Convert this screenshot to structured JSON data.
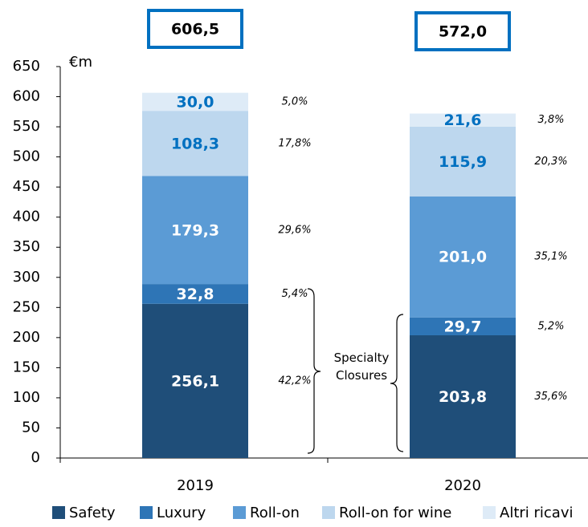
{
  "chart_data": {
    "type": "stacked_bar",
    "unit_label": "€m",
    "categories": [
      "2019",
      "2020"
    ],
    "series": [
      {
        "name": "Safety",
        "color": "#1f4e79",
        "label_color": "#ffffff",
        "values": [
          256.1,
          203.8
        ],
        "value_labels": [
          "256,1",
          "203,8"
        ],
        "shares": [
          42.2,
          35.6
        ],
        "share_labels": [
          "42,2%",
          "35,6%"
        ]
      },
      {
        "name": "Luxury",
        "color": "#2e75b6",
        "label_color": "#ffffff",
        "values": [
          32.8,
          29.7
        ],
        "value_labels": [
          "32,8",
          "29,7"
        ],
        "shares": [
          5.4,
          5.2
        ],
        "share_labels": [
          "5,4%",
          "5,2%"
        ]
      },
      {
        "name": "Roll-on",
        "color": "#5b9bd5",
        "label_color": "#ffffff",
        "values": [
          179.3,
          201.0
        ],
        "value_labels": [
          "179,3",
          "201,0"
        ],
        "shares": [
          29.6,
          35.1
        ],
        "share_labels": [
          "29,6%",
          "35,1%"
        ]
      },
      {
        "name": "Roll-on for wine",
        "color": "#bdd7ee",
        "label_color": "#0070c0",
        "values": [
          108.3,
          115.9
        ],
        "value_labels": [
          "108,3",
          "115,9"
        ],
        "shares": [
          17.8,
          20.3
        ],
        "share_labels": [
          "17,8%",
          "20,3%"
        ]
      },
      {
        "name": "Altri ricavi",
        "color": "#deebf7",
        "label_color": "#0070c0",
        "values": [
          30.0,
          21.6
        ],
        "value_labels": [
          "30,0",
          "21,6"
        ],
        "shares": [
          5.0,
          3.8
        ],
        "share_labels": [
          "5,0%",
          "3,8%"
        ]
      }
    ],
    "totals": [
      606.5,
      572.0
    ],
    "total_labels": [
      "606,5",
      "572,0"
    ],
    "annotation": "Specialty Closures",
    "ylim": [
      0,
      650
    ],
    "yticks": [
      0,
      50,
      100,
      150,
      200,
      250,
      300,
      350,
      400,
      450,
      500,
      550,
      600,
      650
    ]
  }
}
